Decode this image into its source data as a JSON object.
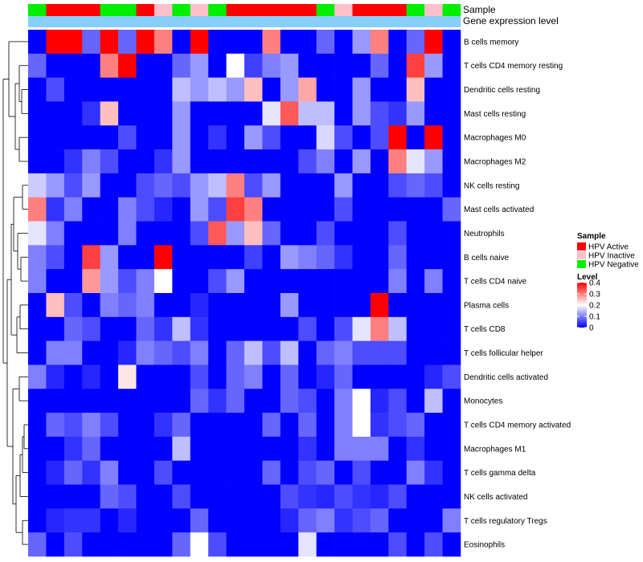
{
  "chart_data": {
    "type": "heatmap",
    "title": "",
    "annotation_tracks": [
      "Sample",
      "Gene expression level"
    ],
    "rows": [
      "B cells memory",
      "T cells CD4 memory resting",
      "Dendritic cells resting",
      "Mast cells resting",
      "Macrophages M0",
      "Macrophages M2",
      "NK cells resting",
      "Mast cells activated",
      "Neutrophils",
      "B cells naive",
      "T cells CD4 naive",
      "Plasma cells",
      "T cells CD8",
      "T cells follicular helper",
      "Dendritic cells activated",
      "Monocytes",
      "T cells CD4 memory activated",
      "Macrophages M1",
      "T cells gamma delta",
      "NK cells activated",
      "T cells regulatory  Tregs",
      "Eosinophils"
    ],
    "column_groups": [
      "neg",
      "act",
      "act",
      "act",
      "neg",
      "neg",
      "act",
      "ina",
      "neg",
      "ina",
      "neg",
      "act",
      "act",
      "act",
      "act",
      "act",
      "neg",
      "ina",
      "act",
      "act",
      "act",
      "neg",
      "ina",
      "neg"
    ],
    "values": [
      [
        0.0,
        0.4,
        0.4,
        0.08,
        0.4,
        0.08,
        0.4,
        0.3,
        0.0,
        0.4,
        0.0,
        0.0,
        0.0,
        0.3,
        0.0,
        0.0,
        0.08,
        0.0,
        0.12,
        0.3,
        0.0,
        0.08,
        0.4,
        0.0
      ],
      [
        0.08,
        0.0,
        0.0,
        0.0,
        0.3,
        0.4,
        0.0,
        0.0,
        0.08,
        0.12,
        0.0,
        0.2,
        0.05,
        0.1,
        0.12,
        0.0,
        0.0,
        0.0,
        0.0,
        0.08,
        0.0,
        0.35,
        0.12,
        0.0
      ],
      [
        0.0,
        0.06,
        0.0,
        0.0,
        0.0,
        0.0,
        0.0,
        0.0,
        0.15,
        0.12,
        0.15,
        0.12,
        0.25,
        0.0,
        0.12,
        0.27,
        0.0,
        0.0,
        0.12,
        0.0,
        0.0,
        0.25,
        0.0,
        0.0
      ],
      [
        0.0,
        0.0,
        0.0,
        0.04,
        0.25,
        0.0,
        0.0,
        0.0,
        0.12,
        0.0,
        0.0,
        0.0,
        0.0,
        0.18,
        0.33,
        0.15,
        0.15,
        0.0,
        0.12,
        0.06,
        0.04,
        0.12,
        0.0,
        0.0
      ],
      [
        0.0,
        0.0,
        0.0,
        0.0,
        0.0,
        0.06,
        0.0,
        0.0,
        0.12,
        0.0,
        0.04,
        0.0,
        0.12,
        0.06,
        0.0,
        0.0,
        0.17,
        0.06,
        0.0,
        0.06,
        0.4,
        0.0,
        0.4,
        0.0
      ],
      [
        0.0,
        0.0,
        0.04,
        0.1,
        0.06,
        0.0,
        0.0,
        0.04,
        0.12,
        0.0,
        0.0,
        0.0,
        0.0,
        0.0,
        0.0,
        0.06,
        0.1,
        0.0,
        0.12,
        0.0,
        0.3,
        0.18,
        0.12,
        0.0
      ],
      [
        0.16,
        0.12,
        0.06,
        0.12,
        0.0,
        0.0,
        0.06,
        0.08,
        0.06,
        0.12,
        0.15,
        0.3,
        0.06,
        0.12,
        0.0,
        0.0,
        0.0,
        0.12,
        0.0,
        0.0,
        0.06,
        0.08,
        0.06,
        0.0
      ],
      [
        0.3,
        0.04,
        0.1,
        0.0,
        0.0,
        0.1,
        0.06,
        0.03,
        0.0,
        0.12,
        0.06,
        0.35,
        0.3,
        0.0,
        0.0,
        0.0,
        0.0,
        0.06,
        0.0,
        0.0,
        0.0,
        0.0,
        0.0,
        0.08
      ],
      [
        0.18,
        0.1,
        0.0,
        0.0,
        0.0,
        0.1,
        0.0,
        0.0,
        0.0,
        0.06,
        0.33,
        0.12,
        0.25,
        0.08,
        0.0,
        0.0,
        0.06,
        0.0,
        0.0,
        0.0,
        0.06,
        0.0,
        0.0,
        0.0
      ],
      [
        0.1,
        0.06,
        0.0,
        0.35,
        0.12,
        0.0,
        0.0,
        0.4,
        0.0,
        0.0,
        0.0,
        0.0,
        0.05,
        0.0,
        0.12,
        0.1,
        0.08,
        0.04,
        0.0,
        0.0,
        0.08,
        0.0,
        0.0,
        0.0
      ],
      [
        0.1,
        0.0,
        0.0,
        0.28,
        0.12,
        0.06,
        0.1,
        0.2,
        0.0,
        0.0,
        0.06,
        0.12,
        0.0,
        0.0,
        0.0,
        0.0,
        0.0,
        0.0,
        0.0,
        0.0,
        0.1,
        0.0,
        0.1,
        0.0
      ],
      [
        0.0,
        0.25,
        0.06,
        0.0,
        0.1,
        0.08,
        0.1,
        0.0,
        0.0,
        0.03,
        0.0,
        0.0,
        0.0,
        0.0,
        0.12,
        0.0,
        0.0,
        0.0,
        0.0,
        0.4,
        0.0,
        0.0,
        0.0,
        0.0
      ],
      [
        0.0,
        0.0,
        0.08,
        0.06,
        0.0,
        0.0,
        0.08,
        0.04,
        0.15,
        0.04,
        0.0,
        0.0,
        0.0,
        0.0,
        0.0,
        0.06,
        0.0,
        0.06,
        0.18,
        0.3,
        0.15,
        0.0,
        0.0,
        0.0
      ],
      [
        0.0,
        0.1,
        0.1,
        0.0,
        0.0,
        0.03,
        0.1,
        0.08,
        0.06,
        0.1,
        0.0,
        0.08,
        0.15,
        0.06,
        0.15,
        0.0,
        0.08,
        0.1,
        0.06,
        0.06,
        0.06,
        0.0,
        0.0,
        0.0
      ],
      [
        0.1,
        0.03,
        0.0,
        0.03,
        0.0,
        0.22,
        0.0,
        0.0,
        0.0,
        0.06,
        0.0,
        0.08,
        0.1,
        0.0,
        0.08,
        0.0,
        0.03,
        0.08,
        0.0,
        0.0,
        0.0,
        0.0,
        0.03,
        0.06
      ],
      [
        0.0,
        0.0,
        0.0,
        0.0,
        0.0,
        0.0,
        0.0,
        0.0,
        0.0,
        0.08,
        0.04,
        0.08,
        0.0,
        0.0,
        0.08,
        0.06,
        0.0,
        0.1,
        0.2,
        0.03,
        0.06,
        0.0,
        0.15,
        0.0
      ],
      [
        0.0,
        0.08,
        0.06,
        0.1,
        0.06,
        0.0,
        0.0,
        0.04,
        0.08,
        0.0,
        0.0,
        0.0,
        0.0,
        0.08,
        0.0,
        0.08,
        0.0,
        0.1,
        0.2,
        0.04,
        0.06,
        0.08,
        0.0,
        0.0
      ],
      [
        0.0,
        0.0,
        0.04,
        0.08,
        0.0,
        0.0,
        0.0,
        0.0,
        0.15,
        0.0,
        0.0,
        0.0,
        0.0,
        0.0,
        0.0,
        0.04,
        0.0,
        0.1,
        0.1,
        0.1,
        0.0,
        0.04,
        0.0,
        0.0
      ],
      [
        0.0,
        0.03,
        0.08,
        0.04,
        0.1,
        0.0,
        0.0,
        0.06,
        0.0,
        0.0,
        0.0,
        0.0,
        0.0,
        0.08,
        0.0,
        0.06,
        0.08,
        0.0,
        0.06,
        0.0,
        0.0,
        0.1,
        0.04,
        0.0
      ],
      [
        0.0,
        0.0,
        0.0,
        0.0,
        0.08,
        0.06,
        0.0,
        0.0,
        0.06,
        0.0,
        0.0,
        0.0,
        0.0,
        0.0,
        0.06,
        0.04,
        0.03,
        0.06,
        0.04,
        0.03,
        0.06,
        0.0,
        0.0,
        0.0
      ],
      [
        0.0,
        0.03,
        0.04,
        0.04,
        0.0,
        0.03,
        0.0,
        0.0,
        0.0,
        0.08,
        0.0,
        0.0,
        0.0,
        0.0,
        0.03,
        0.08,
        0.1,
        0.04,
        0.06,
        0.08,
        0.0,
        0.0,
        0.0,
        0.1
      ],
      [
        0.08,
        0.0,
        0.06,
        0.0,
        0.0,
        0.0,
        0.0,
        0.0,
        0.08,
        0.2,
        0.06,
        0.0,
        0.0,
        0.0,
        0.0,
        0.18,
        0.0,
        0.0,
        0.0,
        0.0,
        0.06,
        0.0,
        0.06,
        0.0
      ]
    ],
    "legend": {
      "sample_title": "Sample",
      "sample_entries": [
        {
          "key": "act",
          "label": "HPV Active",
          "color": "#ff0000"
        },
        {
          "key": "ina",
          "label": "HPV Inactive",
          "color": "#ffc0cb"
        },
        {
          "key": "neg",
          "label": "HPV Negative",
          "color": "#00ee00"
        }
      ],
      "level_title": "Level",
      "level_ticks": [
        "0.4",
        "0.3",
        "0.2",
        "0.1",
        "0"
      ],
      "level_range": [
        0,
        0.4
      ],
      "low_color": "#0000ff",
      "mid_color": "#ffffff",
      "high_color": "#ff0000"
    },
    "expr_color": "#87cefa"
  }
}
